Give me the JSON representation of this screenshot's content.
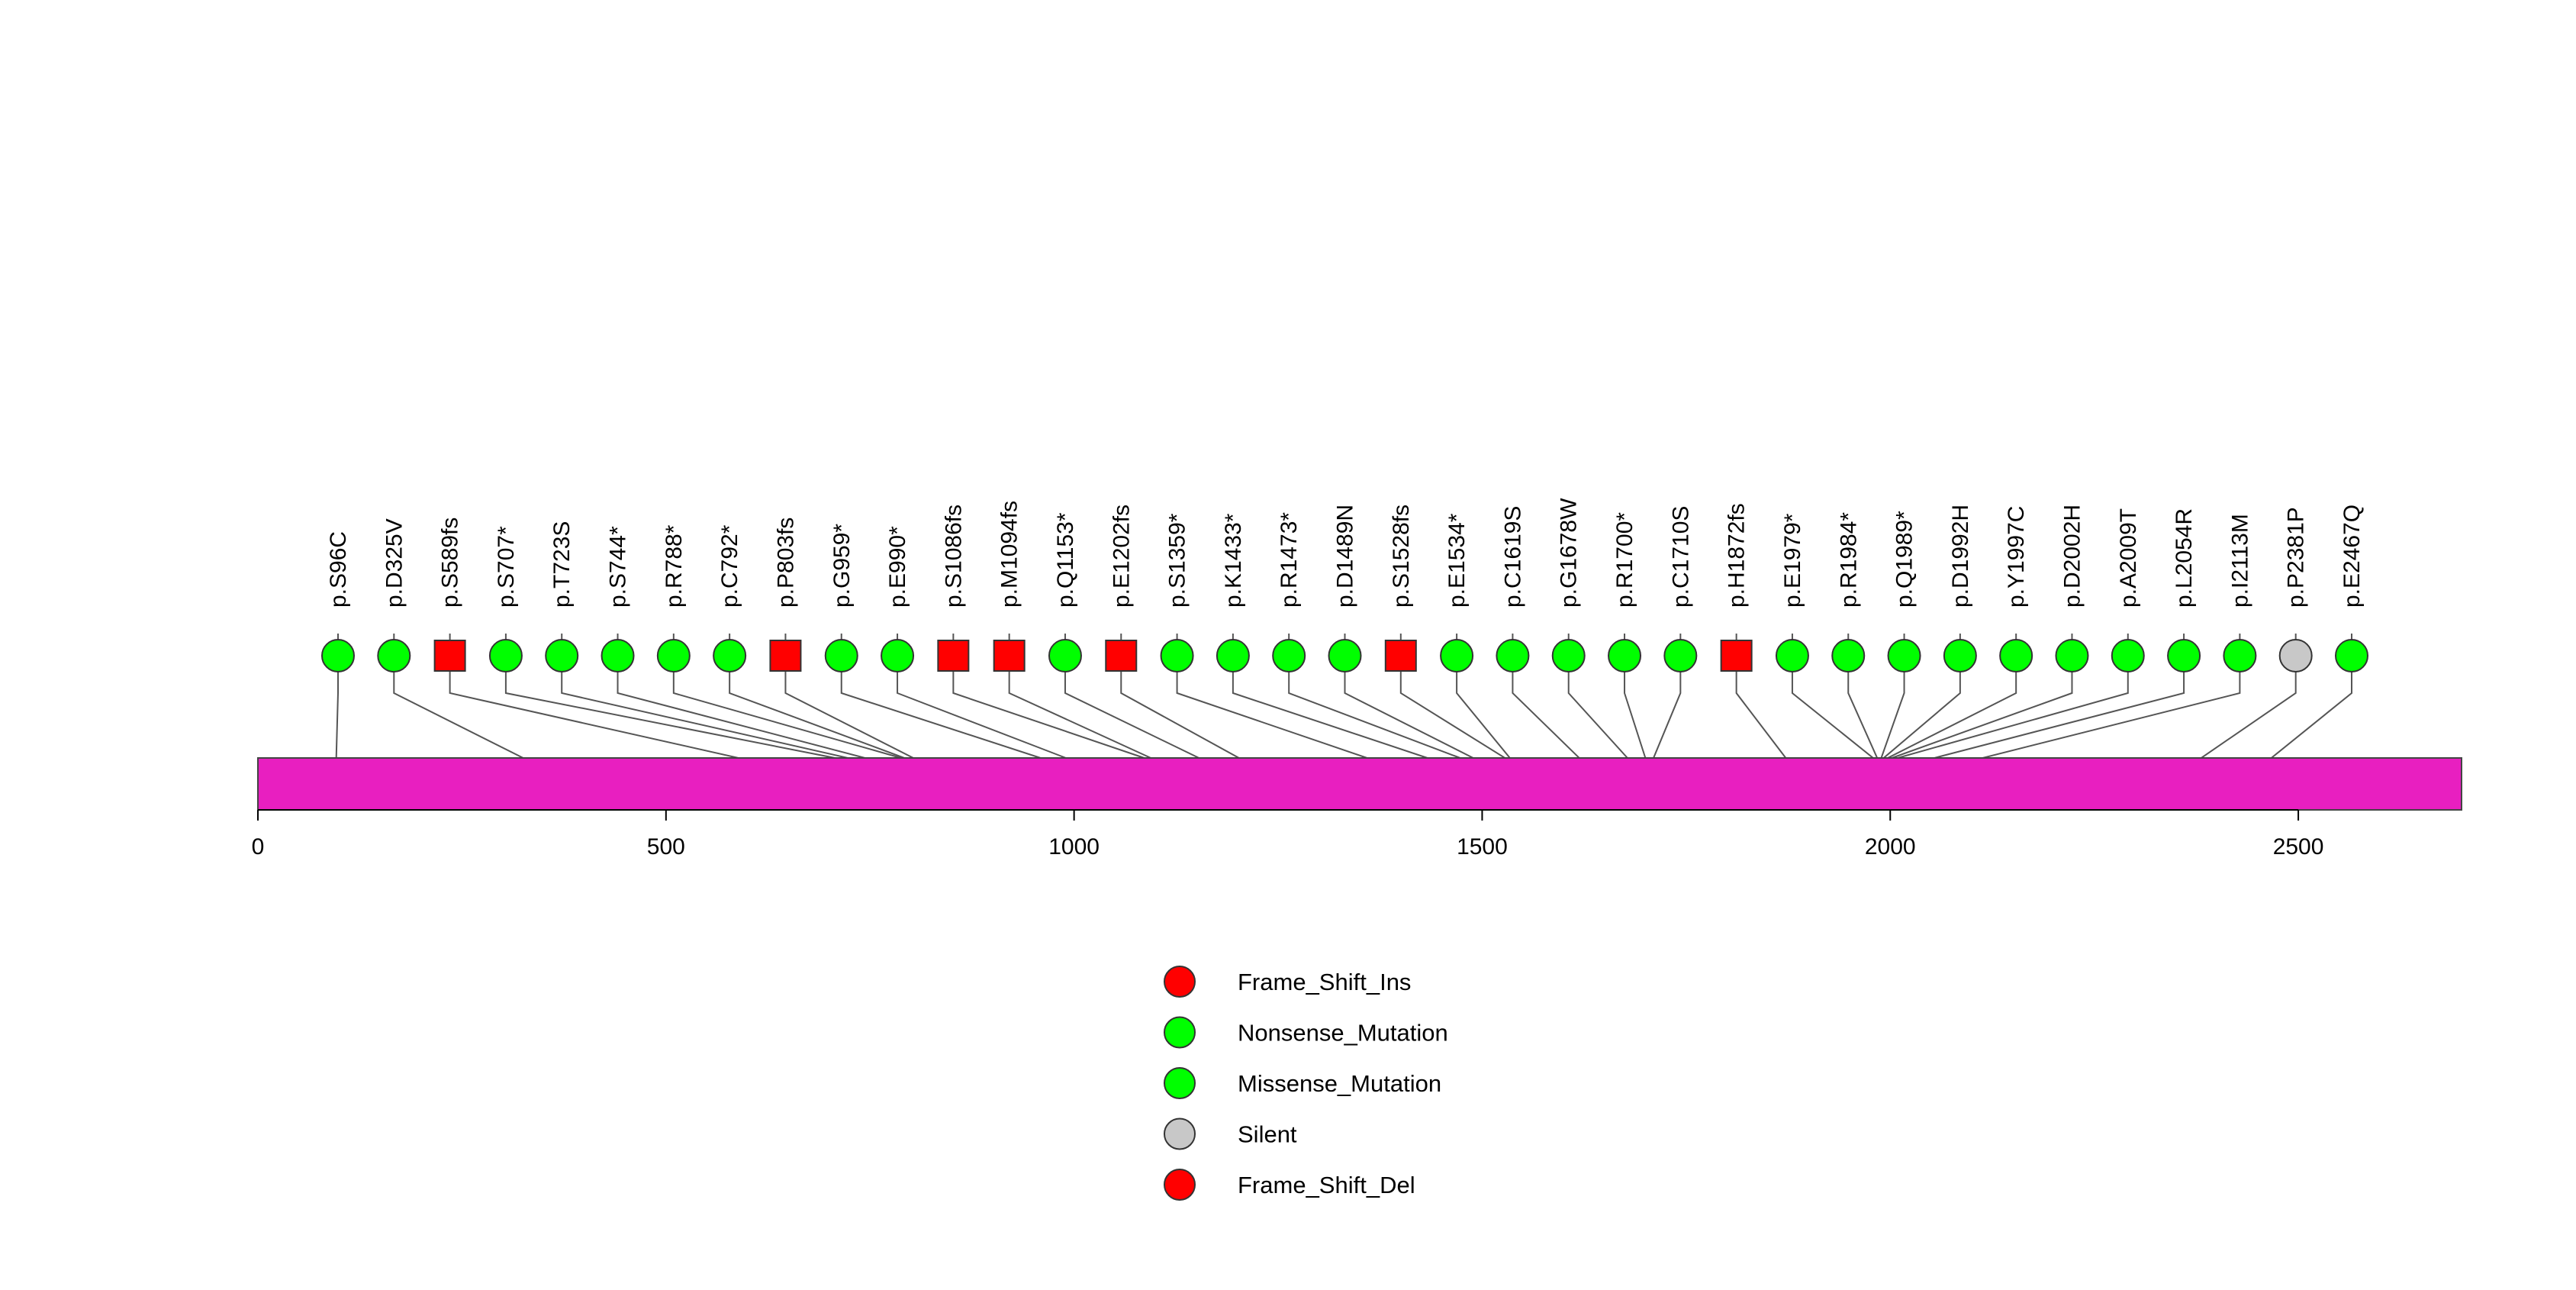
{
  "chart_data": {
    "type": "lollipop",
    "title": "",
    "protein_length": 2700,
    "xlim": [
      0,
      2700
    ],
    "ticks": [
      0,
      500,
      1000,
      1500,
      2000,
      2500
    ],
    "tick_labels": [
      "0",
      "500",
      "1000",
      "1500",
      "2000",
      "2500"
    ],
    "protein_color": "#e81fc0",
    "mutations": [
      {
        "label": "p.S96C",
        "position": 96,
        "category": "Missense_Mutation"
      },
      {
        "label": "p.D325V",
        "position": 325,
        "category": "Missense_Mutation"
      },
      {
        "label": "p.S589fs",
        "position": 589,
        "category": "Frame_Shift_Del"
      },
      {
        "label": "p.S707*",
        "position": 707,
        "category": "Nonsense_Mutation"
      },
      {
        "label": "p.T723S",
        "position": 723,
        "category": "Missense_Mutation"
      },
      {
        "label": "p.S744*",
        "position": 744,
        "category": "Nonsense_Mutation"
      },
      {
        "label": "p.R788*",
        "position": 788,
        "category": "Nonsense_Mutation"
      },
      {
        "label": "p.C792*",
        "position": 792,
        "category": "Nonsense_Mutation"
      },
      {
        "label": "p.P803fs",
        "position": 803,
        "category": "Frame_Shift_Del"
      },
      {
        "label": "p.G959*",
        "position": 959,
        "category": "Nonsense_Mutation"
      },
      {
        "label": "p.E990*",
        "position": 990,
        "category": "Nonsense_Mutation"
      },
      {
        "label": "p.S1086fs",
        "position": 1086,
        "category": "Frame_Shift_Del"
      },
      {
        "label": "p.M1094fs",
        "position": 1094,
        "category": "Frame_Shift_Del"
      },
      {
        "label": "p.Q1153*",
        "position": 1153,
        "category": "Nonsense_Mutation"
      },
      {
        "label": "p.E1202fs",
        "position": 1202,
        "category": "Frame_Shift_Del"
      },
      {
        "label": "p.S1359*",
        "position": 1359,
        "category": "Nonsense_Mutation"
      },
      {
        "label": "p.K1433*",
        "position": 1433,
        "category": "Nonsense_Mutation"
      },
      {
        "label": "p.R1473*",
        "position": 1473,
        "category": "Nonsense_Mutation"
      },
      {
        "label": "p.D1489N",
        "position": 1489,
        "category": "Missense_Mutation"
      },
      {
        "label": "p.S1528fs",
        "position": 1528,
        "category": "Frame_Shift_Del"
      },
      {
        "label": "p.E1534*",
        "position": 1534,
        "category": "Nonsense_Mutation"
      },
      {
        "label": "p.C1619S",
        "position": 1619,
        "category": "Missense_Mutation"
      },
      {
        "label": "p.G1678W",
        "position": 1678,
        "category": "Missense_Mutation"
      },
      {
        "label": "p.R1700*",
        "position": 1700,
        "category": "Nonsense_Mutation"
      },
      {
        "label": "p.C1710S",
        "position": 1710,
        "category": "Missense_Mutation"
      },
      {
        "label": "p.H1872fs",
        "position": 1872,
        "category": "Frame_Shift_Ins"
      },
      {
        "label": "p.E1979*",
        "position": 1979,
        "category": "Nonsense_Mutation"
      },
      {
        "label": "p.R1984*",
        "position": 1984,
        "category": "Nonsense_Mutation"
      },
      {
        "label": "p.Q1989*",
        "position": 1989,
        "category": "Nonsense_Mutation"
      },
      {
        "label": "p.D1992H",
        "position": 1992,
        "category": "Missense_Mutation"
      },
      {
        "label": "p.Y1997C",
        "position": 1997,
        "category": "Missense_Mutation"
      },
      {
        "label": "p.D2002H",
        "position": 2002,
        "category": "Missense_Mutation"
      },
      {
        "label": "p.A2009T",
        "position": 2009,
        "category": "Missense_Mutation"
      },
      {
        "label": "p.L2054R",
        "position": 2054,
        "category": "Missense_Mutation"
      },
      {
        "label": "p.I2113M",
        "position": 2113,
        "category": "Missense_Mutation"
      },
      {
        "label": "p.P2381P",
        "position": 2381,
        "category": "Silent"
      },
      {
        "label": "p.E2467Q",
        "position": 2467,
        "category": "Missense_Mutation"
      }
    ],
    "legend": [
      {
        "label": "Frame_Shift_Ins",
        "color": "#ff0000"
      },
      {
        "label": "Nonsense_Mutation",
        "color": "#00ff00"
      },
      {
        "label": "Missense_Mutation",
        "color": "#00ff00"
      },
      {
        "label": "Silent",
        "color": "#c8c8c8"
      },
      {
        "label": "Frame_Shift_Del",
        "color": "#ff0000"
      }
    ],
    "category_styles": {
      "Frame_Shift_Ins": {
        "color": "#ff0000",
        "shape": "square"
      },
      "Frame_Shift_Del": {
        "color": "#ff0000",
        "shape": "square"
      },
      "Nonsense_Mutation": {
        "color": "#00ff00",
        "shape": "circle"
      },
      "Missense_Mutation": {
        "color": "#00ff00",
        "shape": "circle"
      },
      "Silent": {
        "color": "#c8c8c8",
        "shape": "circle"
      }
    }
  }
}
